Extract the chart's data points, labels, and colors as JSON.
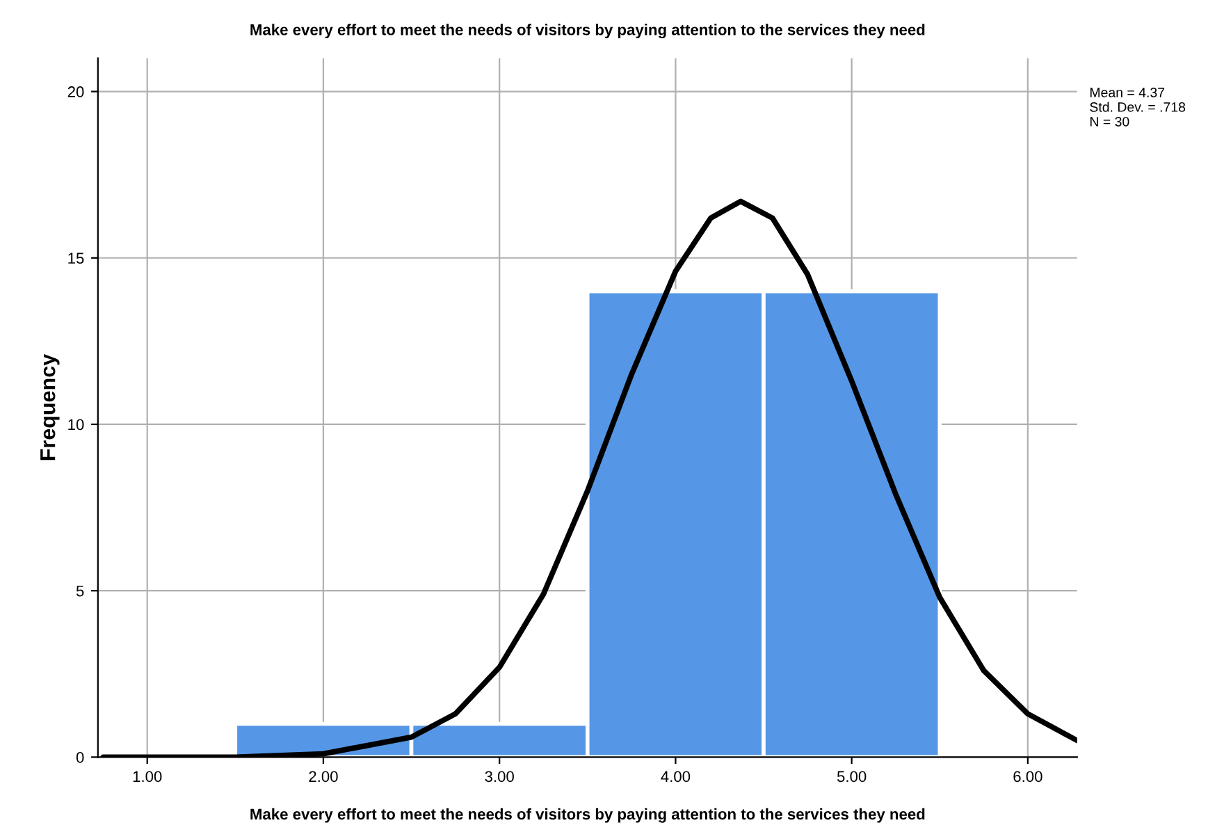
{
  "chart_data": {
    "type": "histogram",
    "title": "Make every effort to meet the needs of visitors by paying attention to the services they need",
    "xlabel": "Make every effort to meet the needs of visitors by paying attention to the services they need",
    "ylabel": "Frequency",
    "bins": [
      1.5,
      2.5,
      3.5,
      4.5,
      5.5
    ],
    "values": [
      1,
      1,
      14,
      14
    ],
    "color": "#5596e6",
    "series": [
      {
        "type": "line",
        "color": "#000000",
        "x": [
          0.75,
          1.5,
          2.0,
          2.5,
          2.75,
          3.0,
          3.25,
          3.5,
          3.75,
          4.0,
          4.2,
          4.37,
          4.55,
          4.75,
          5.0,
          5.25,
          5.5,
          5.75,
          6.0,
          6.28
        ],
        "values": [
          0,
          0,
          0.1,
          0.6,
          1.3,
          2.7,
          4.9,
          8.0,
          11.5,
          14.6,
          16.2,
          16.7,
          16.2,
          14.5,
          11.3,
          7.9,
          4.8,
          2.6,
          1.3,
          0.5
        ]
      }
    ],
    "xlim": [
      0.72,
      6.28
    ],
    "ylim": [
      0,
      21
    ],
    "xticks": [
      {
        "value": 1,
        "label": "1.00"
      },
      {
        "value": 2,
        "label": "2.00"
      },
      {
        "value": 3,
        "label": "3.00"
      },
      {
        "value": 4,
        "label": "4.00"
      },
      {
        "value": 5,
        "label": "5.00"
      },
      {
        "value": 6,
        "label": "6.00"
      }
    ],
    "yticks": [
      0,
      5,
      10,
      15,
      20
    ],
    "grid": true,
    "annotations": [
      "Mean = 4.37\nStd. Dev. = .718\nN = 30"
    ]
  }
}
